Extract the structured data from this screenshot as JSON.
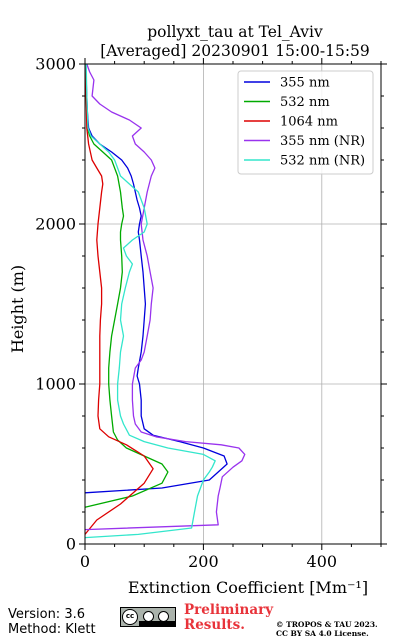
{
  "chart_data": {
    "type": "line",
    "title": "pollyxt_tau at Tel_Aviv",
    "subtitle": "[Averaged] 20230901 15:00-15:59",
    "xlabel": "Extinction Coefficient [Mm⁻¹]",
    "ylabel": "Height (m)",
    "xlim": [
      0,
      500
    ],
    "ylim": [
      0,
      3000
    ],
    "xticks": [
      "0",
      "200",
      "400"
    ],
    "yticks": [
      "0",
      "1000",
      "2000",
      "3000"
    ],
    "grid": true,
    "legend_position": "top-right",
    "series": [
      {
        "name": "355 nm",
        "color": "#0000dd",
        "x": [
          0,
          130,
          210,
          240,
          235,
          200,
          160,
          115,
          100,
          95,
          95,
          92,
          88,
          90,
          95,
          98,
          100,
          102,
          100,
          98,
          95,
          92,
          90,
          92,
          95,
          92,
          88,
          85,
          82,
          78,
          72,
          62,
          45,
          25,
          12,
          6,
          4,
          3,
          2,
          1
        ],
        "y": [
          320,
          350,
          400,
          500,
          550,
          600,
          640,
          680,
          720,
          800,
          900,
          1000,
          1050,
          1100,
          1200,
          1300,
          1400,
          1500,
          1600,
          1700,
          1800,
          1900,
          1950,
          2000,
          2050,
          2100,
          2150,
          2200,
          2250,
          2300,
          2350,
          2400,
          2450,
          2500,
          2550,
          2600,
          2700,
          2800,
          2900,
          3000
        ]
      },
      {
        "name": "532 nm",
        "color": "#00aa00",
        "x": [
          0,
          80,
          130,
          140,
          130,
          100,
          70,
          55,
          48,
          45,
          42,
          40,
          40,
          42,
          45,
          50,
          55,
          60,
          63,
          62,
          60,
          60,
          62,
          65,
          63,
          60,
          55,
          45,
          30,
          15,
          8,
          4,
          2,
          1
        ],
        "y": [
          230,
          300,
          380,
          450,
          500,
          550,
          600,
          650,
          700,
          800,
          900,
          1000,
          1100,
          1200,
          1300,
          1400,
          1500,
          1600,
          1700,
          1800,
          1900,
          1950,
          2000,
          2050,
          2100,
          2200,
          2300,
          2400,
          2450,
          2500,
          2550,
          2600,
          2800,
          3000
        ]
      },
      {
        "name": "1064 nm",
        "color": "#dd0000",
        "x": [
          0,
          20,
          60,
          100,
          115,
          100,
          70,
          40,
          25,
          22,
          23,
          25,
          25,
          25,
          25,
          26,
          28,
          28,
          25,
          22,
          20,
          22,
          25,
          28,
          30,
          28,
          20,
          12,
          6,
          3,
          1
        ],
        "y": [
          60,
          150,
          250,
          380,
          470,
          550,
          620,
          670,
          720,
          800,
          900,
          1000,
          1100,
          1200,
          1300,
          1400,
          1500,
          1600,
          1700,
          1800,
          1900,
          2000,
          2100,
          2200,
          2250,
          2300,
          2350,
          2400,
          2500,
          2600,
          3000
        ]
      },
      {
        "name": "355 nm (NR)",
        "color": "#9933ee",
        "x": [
          0,
          225,
          222,
          225,
          228,
          232,
          250,
          265,
          270,
          260,
          230,
          170,
          120,
          95,
          85,
          82,
          80,
          80,
          85,
          95,
          100,
          105,
          110,
          112,
          115,
          110,
          105,
          98,
          95,
          100,
          105,
          112,
          118,
          112,
          100,
          85,
          80,
          95,
          75,
          45,
          25,
          12,
          15,
          8,
          3
        ],
        "y": [
          90,
          120,
          200,
          300,
          350,
          420,
          480,
          520,
          560,
          600,
          620,
          640,
          670,
          700,
          750,
          800,
          900,
          1000,
          1100,
          1150,
          1200,
          1300,
          1400,
          1500,
          1600,
          1700,
          1800,
          1900,
          2000,
          2100,
          2200,
          2300,
          2350,
          2400,
          2450,
          2500,
          2550,
          2600,
          2650,
          2700,
          2750,
          2800,
          2900,
          2950,
          3000
        ]
      },
      {
        "name": "532 nm (NR)",
        "color": "#33e6cc",
        "x": [
          0,
          90,
          180,
          185,
          190,
          200,
          210,
          215,
          220,
          200,
          140,
          100,
          75,
          65,
          60,
          55,
          55,
          58,
          60,
          65,
          60,
          62,
          68,
          75,
          80,
          70,
          65,
          80,
          100,
          105,
          100,
          90,
          75,
          60,
          55,
          50,
          40,
          25,
          10,
          5,
          3,
          2
        ],
        "y": [
          40,
          60,
          100,
          200,
          300,
          400,
          450,
          480,
          520,
          560,
          600,
          640,
          680,
          750,
          800,
          900,
          1000,
          1100,
          1200,
          1300,
          1400,
          1500,
          1600,
          1700,
          1750,
          1800,
          1850,
          1900,
          1950,
          2000,
          2100,
          2200,
          2250,
          2300,
          2350,
          2400,
          2450,
          2500,
          2550,
          2600,
          2800,
          3000
        ]
      }
    ]
  },
  "footer": {
    "version": "Version: 3.6",
    "method": "Method: Klett",
    "preliminary_line1": "Preliminary",
    "preliminary_line2": "Results.",
    "copyright_line1": "© TROPOS & TAU 2023.",
    "copyright_line2": "CC BY SA 4.0 License.",
    "license_logo": "CC BY SA"
  }
}
